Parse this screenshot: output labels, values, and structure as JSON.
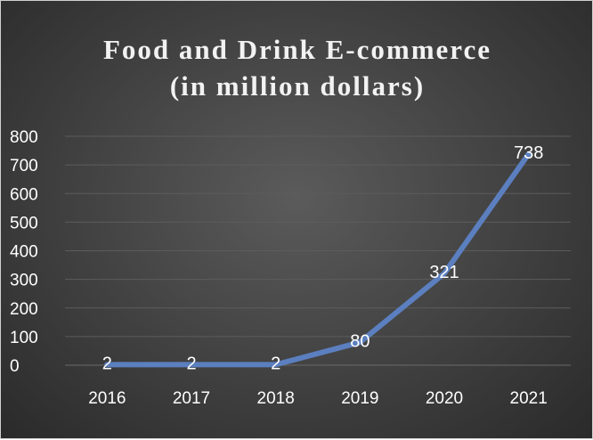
{
  "chart_data": {
    "type": "line",
    "title_lines": [
      "Food and Drink E-commerce",
      "(in million dollars)"
    ],
    "categories": [
      "2016",
      "2017",
      "2018",
      "2019",
      "2020",
      "2021"
    ],
    "values": [
      2,
      2,
      2,
      80,
      321,
      738
    ],
    "data_labels": [
      "2",
      "2",
      "2",
      "80",
      "321",
      "738"
    ],
    "ylim": [
      0,
      800
    ],
    "y_ticks": [
      "0",
      "100",
      "200",
      "300",
      "400",
      "500",
      "600",
      "700",
      "800"
    ],
    "grid": true,
    "legend": "none",
    "line_color": "#5b7fbf",
    "background_color": "#404040",
    "text_color": "#ffffff"
  }
}
